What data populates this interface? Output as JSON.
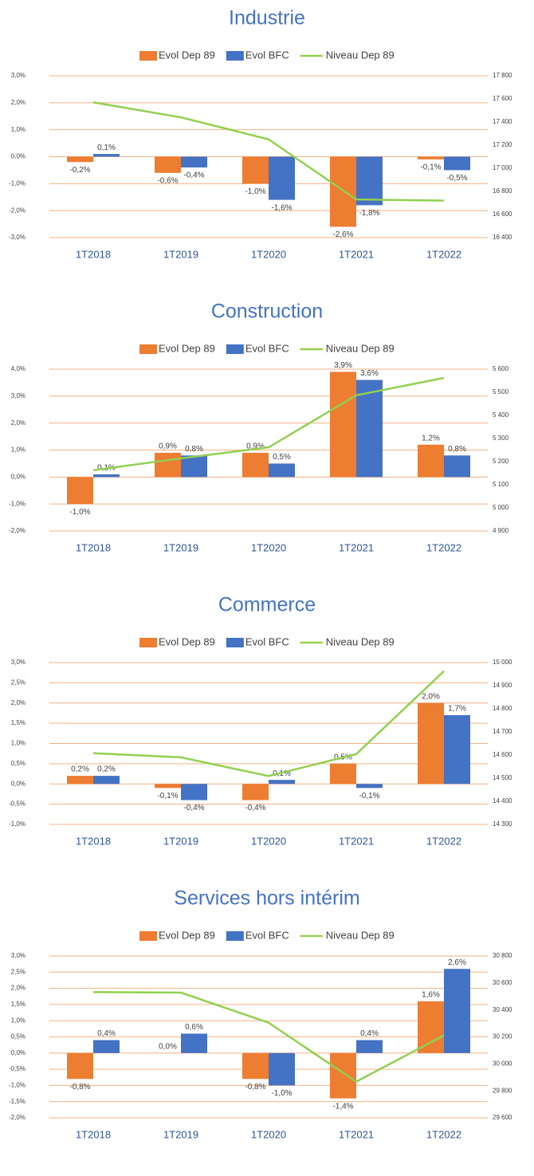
{
  "chart_data": [
    {
      "type": "bar",
      "title": "Industrie",
      "categories": [
        "1T2018",
        "1T2019",
        "1T2020",
        "1T2021",
        "1T2022"
      ],
      "series": [
        {
          "name": "Evol Dep 89",
          "color": "#ed7d31",
          "values": [
            -0.2,
            -0.6,
            -1.0,
            -2.6,
            -0.1
          ],
          "value_labels": [
            "-0,2%",
            "-0,6%",
            "-1,0%",
            "-2,6%",
            "-0,1%"
          ]
        },
        {
          "name": "Evol BFC",
          "color": "#4472c4",
          "values": [
            0.1,
            -0.4,
            -1.6,
            -1.8,
            -0.5
          ],
          "value_labels": [
            "0,1%",
            "-0,4%",
            "-1,6%",
            "-1,8%",
            "-0,5%"
          ]
        },
        {
          "name": "Niveau Dep 89",
          "color": "#92d050",
          "type": "line",
          "axis": "y2",
          "values": [
            17570,
            17440,
            17250,
            16730,
            16720
          ]
        }
      ],
      "ylim": [
        -3,
        3
      ],
      "yticks": [
        {
          "value": -3,
          "label": "-3,0%"
        },
        {
          "value": -2,
          "label": "-2,0%"
        },
        {
          "value": -1,
          "label": "-1,0%"
        },
        {
          "value": 0,
          "label": "0,0%"
        },
        {
          "value": 1,
          "label": "1,0%"
        },
        {
          "value": 2,
          "label": "2,0%"
        },
        {
          "value": 3,
          "label": "3,0%"
        }
      ],
      "y2lim": [
        16400,
        17800
      ],
      "y2ticks": [
        {
          "value": 16400,
          "label": "16 400"
        },
        {
          "value": 16600,
          "label": "16 600"
        },
        {
          "value": 16800,
          "label": "16 800"
        },
        {
          "value": 17000,
          "label": "17 000"
        },
        {
          "value": 17200,
          "label": "17 200"
        },
        {
          "value": 17400,
          "label": "17 400"
        },
        {
          "value": 17600,
          "label": "17 600"
        },
        {
          "value": 17800,
          "label": "17 800"
        }
      ],
      "grid": true,
      "legend": "top"
    },
    {
      "type": "bar",
      "title": "Construction",
      "categories": [
        "1T2018",
        "1T2019",
        "1T2020",
        "1T2021",
        "1T2022"
      ],
      "series": [
        {
          "name": "Evol Dep 89",
          "color": "#ed7d31",
          "values": [
            -1.0,
            0.9,
            0.9,
            3.9,
            1.2
          ],
          "value_labels": [
            "-1,0%",
            "0,9%",
            "0,9%",
            "3,9%",
            "1,2%"
          ]
        },
        {
          "name": "Evol BFC",
          "color": "#4472c4",
          "values": [
            0.1,
            0.8,
            0.5,
            3.6,
            0.8
          ],
          "value_labels": [
            "0,1%",
            "0,8%",
            "0,5%",
            "3,6%",
            "0,8%"
          ]
        },
        {
          "name": "Niveau Dep 89",
          "color": "#92d050",
          "type": "line",
          "axis": "y2",
          "values": [
            5163,
            5214,
            5262,
            5487,
            5562
          ]
        }
      ],
      "ylim": [
        -2,
        4
      ],
      "yticks": [
        {
          "value": -2,
          "label": "-2,0%"
        },
        {
          "value": -1,
          "label": "-1,0%"
        },
        {
          "value": 0,
          "label": "0,0%"
        },
        {
          "value": 1,
          "label": "1,0%"
        },
        {
          "value": 2,
          "label": "2,0%"
        },
        {
          "value": 3,
          "label": "3,0%"
        },
        {
          "value": 4,
          "label": "4,0%"
        }
      ],
      "y2lim": [
        4900,
        5600
      ],
      "y2ticks": [
        {
          "value": 4900,
          "label": "4 900"
        },
        {
          "value": 5000,
          "label": "5 000"
        },
        {
          "value": 5100,
          "label": "5 100"
        },
        {
          "value": 5200,
          "label": "5 200"
        },
        {
          "value": 5300,
          "label": "5 300"
        },
        {
          "value": 5400,
          "label": "5 400"
        },
        {
          "value": 5500,
          "label": "5 500"
        },
        {
          "value": 5600,
          "label": "5 600"
        }
      ],
      "grid": true,
      "legend": "top"
    },
    {
      "type": "bar",
      "title": "Commerce",
      "categories": [
        "1T2018",
        "1T2019",
        "1T2020",
        "1T2021",
        "1T2022"
      ],
      "series": [
        {
          "name": "Evol Dep 89",
          "color": "#ed7d31",
          "values": [
            0.2,
            -0.1,
            -0.4,
            0.5,
            2.0
          ],
          "value_labels": [
            "0,2%",
            "-0,1%",
            "-0,4%",
            "0,5%",
            "2,0%"
          ]
        },
        {
          "name": "Evol BFC",
          "color": "#4472c4",
          "values": [
            0.2,
            -0.4,
            0.1,
            -0.1,
            1.7
          ],
          "value_labels": [
            "0,2%",
            "-0,4%",
            "0,1%",
            "-0,1%",
            "1,7%"
          ]
        },
        {
          "name": "Niveau Dep 89",
          "color": "#92d050",
          "type": "line",
          "axis": "y2",
          "values": [
            14608,
            14590,
            14509,
            14604,
            14963
          ]
        }
      ],
      "ylim": [
        -1,
        3
      ],
      "yticks": [
        {
          "value": -1,
          "label": "-1,0%"
        },
        {
          "value": -0.5,
          "label": "-0,5%"
        },
        {
          "value": 0,
          "label": "0,0%"
        },
        {
          "value": 0.5,
          "label": "0,5%"
        },
        {
          "value": 1,
          "label": "1,0%"
        },
        {
          "value": 1.5,
          "label": "1,5%"
        },
        {
          "value": 2,
          "label": "2,0%"
        },
        {
          "value": 2.5,
          "label": "2,5%"
        },
        {
          "value": 3,
          "label": "3,0%"
        }
      ],
      "y2lim": [
        14300,
        15000
      ],
      "y2ticks": [
        {
          "value": 14300,
          "label": "14 300"
        },
        {
          "value": 14400,
          "label": "14 400"
        },
        {
          "value": 14500,
          "label": "14 500"
        },
        {
          "value": 14600,
          "label": "14 600"
        },
        {
          "value": 14700,
          "label": "14 700"
        },
        {
          "value": 14800,
          "label": "14 800"
        },
        {
          "value": 14900,
          "label": "14 900"
        },
        {
          "value": 15000,
          "label": "15 000"
        }
      ],
      "grid": true,
      "legend": "top"
    },
    {
      "type": "bar",
      "title": "Services hors intérim",
      "categories": [
        "1T2018",
        "1T2019",
        "1T2020",
        "1T2021",
        "1T2022"
      ],
      "series": [
        {
          "name": "Evol Dep 89",
          "color": "#ed7d31",
          "values": [
            -0.8,
            0.0,
            -0.8,
            -1.4,
            1.6
          ],
          "value_labels": [
            "-0,8%",
            "0,0%",
            "-0,8%",
            "-1,4%",
            "1,6%"
          ]
        },
        {
          "name": "Evol BFC",
          "color": "#4472c4",
          "values": [
            0.4,
            0.6,
            -1.0,
            0.4,
            2.6
          ],
          "value_labels": [
            "0,4%",
            "0,6%",
            "-1,0%",
            "0,4%",
            "2,6%"
          ]
        },
        {
          "name": "Niveau Dep 89",
          "color": "#92d050",
          "type": "line",
          "axis": "y2",
          "values": [
            30532,
            30528,
            30305,
            29868,
            30211
          ]
        }
      ],
      "ylim": [
        -2,
        3
      ],
      "yticks": [
        {
          "value": -2,
          "label": "-2,0%"
        },
        {
          "value": -1.5,
          "label": "-1,5%"
        },
        {
          "value": -1,
          "label": "-1,0%"
        },
        {
          "value": -0.5,
          "label": "-0,5%"
        },
        {
          "value": 0,
          "label": "0,0%"
        },
        {
          "value": 0.5,
          "label": "0,5%"
        },
        {
          "value": 1,
          "label": "1,0%"
        },
        {
          "value": 1.5,
          "label": "1,5%"
        },
        {
          "value": 2,
          "label": "2,0%"
        },
        {
          "value": 2.5,
          "label": "2,5%"
        },
        {
          "value": 3,
          "label": "3,0%"
        }
      ],
      "y2lim": [
        29600,
        30800
      ],
      "y2ticks": [
        {
          "value": 29600,
          "label": "29 600"
        },
        {
          "value": 29800,
          "label": "29 800"
        },
        {
          "value": 30000,
          "label": "30 000"
        },
        {
          "value": 30200,
          "label": "30 200"
        },
        {
          "value": 30400,
          "label": "30 400"
        },
        {
          "value": 30600,
          "label": "30 600"
        },
        {
          "value": 30800,
          "label": "30 800"
        }
      ],
      "grid": true,
      "legend": "top"
    }
  ]
}
